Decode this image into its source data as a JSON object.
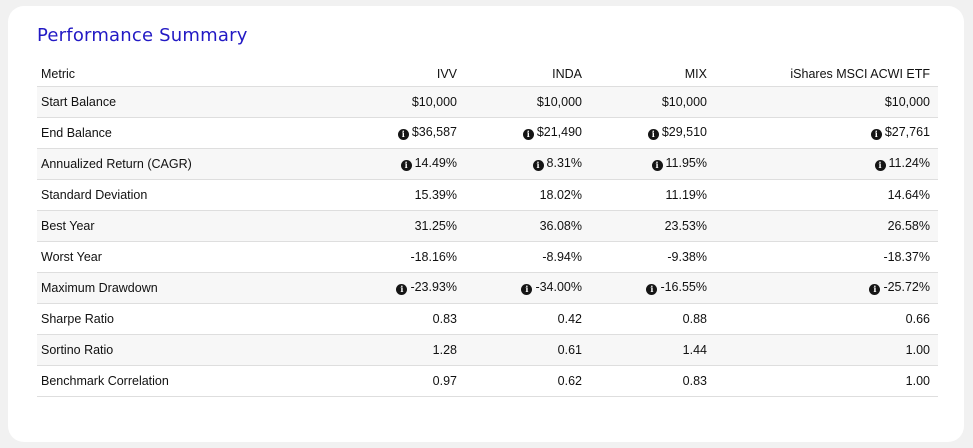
{
  "title": "Performance Summary",
  "columns": [
    "Metric",
    "IVV",
    "INDA",
    "MIX",
    "iShares MSCI ACWI ETF"
  ],
  "info_icon_glyph": "i",
  "colors": {
    "title": "#2219c4",
    "text": "#111111",
    "row_stripe": "#f7f7f7",
    "row_divider": "#dedede",
    "card_background": "#ffffff",
    "page_background": "#f1f1f1"
  },
  "rows": [
    {
      "metric": "Start Balance",
      "values": [
        "$10,000",
        "$10,000",
        "$10,000",
        "$10,000"
      ],
      "info_icon": false
    },
    {
      "metric": "End Balance",
      "values": [
        "$36,587",
        "$21,490",
        "$29,510",
        "$27,761"
      ],
      "info_icon": true
    },
    {
      "metric": "Annualized Return (CAGR)",
      "values": [
        "14.49%",
        "8.31%",
        "11.95%",
        "11.24%"
      ],
      "info_icon": true
    },
    {
      "metric": "Standard Deviation",
      "values": [
        "15.39%",
        "18.02%",
        "11.19%",
        "14.64%"
      ],
      "info_icon": false
    },
    {
      "metric": "Best Year",
      "values": [
        "31.25%",
        "36.08%",
        "23.53%",
        "26.58%"
      ],
      "info_icon": false
    },
    {
      "metric": "Worst Year",
      "values": [
        "-18.16%",
        "-8.94%",
        "-9.38%",
        "-18.37%"
      ],
      "info_icon": false
    },
    {
      "metric": "Maximum Drawdown",
      "values": [
        "-23.93%",
        "-34.00%",
        "-16.55%",
        "-25.72%"
      ],
      "info_icon": true
    },
    {
      "metric": "Sharpe Ratio",
      "values": [
        "0.83",
        "0.42",
        "0.88",
        "0.66"
      ],
      "info_icon": false
    },
    {
      "metric": "Sortino Ratio",
      "values": [
        "1.28",
        "0.61",
        "1.44",
        "1.00"
      ],
      "info_icon": false
    },
    {
      "metric": "Benchmark Correlation",
      "values": [
        "0.97",
        "0.62",
        "0.83",
        "1.00"
      ],
      "info_icon": false
    }
  ]
}
